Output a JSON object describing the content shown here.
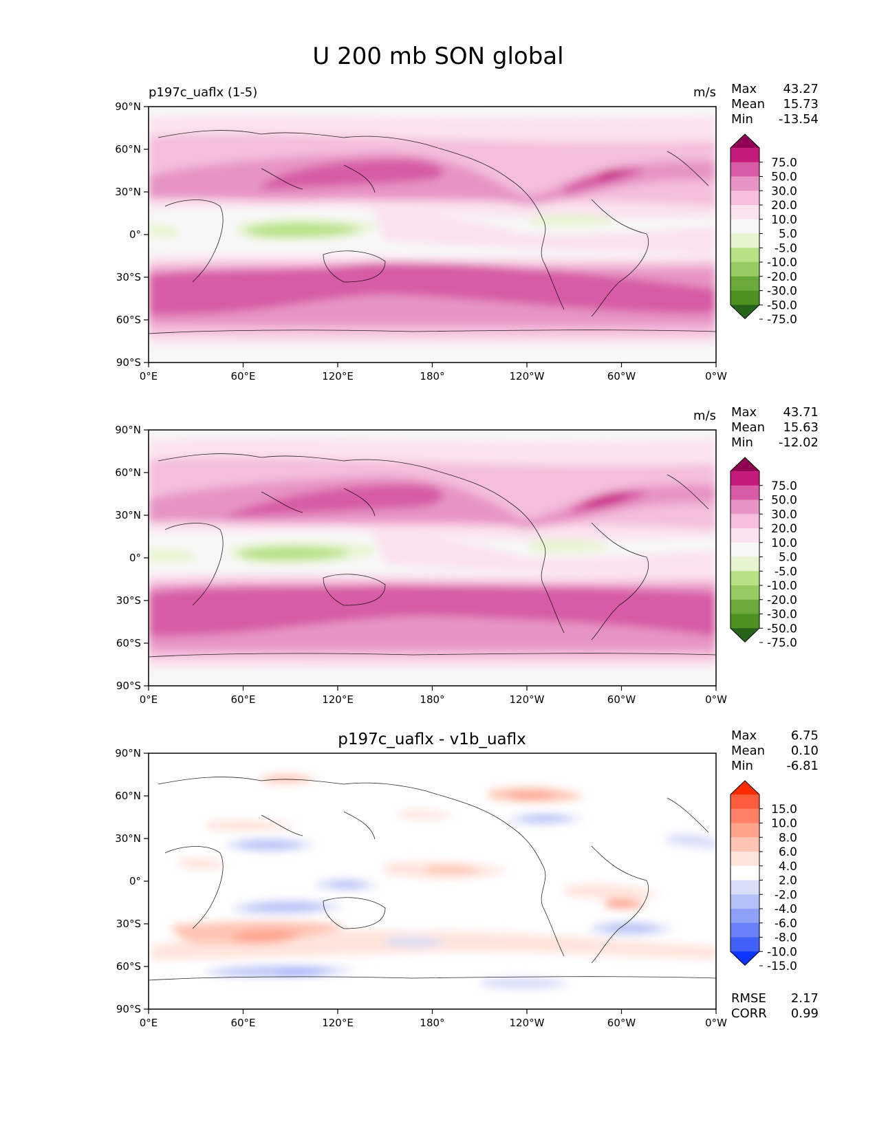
{
  "title": "U 200 mb SON global",
  "panels": [
    {
      "left_title": "p197c_uaflx (1-5)",
      "center_title": "",
      "units": "m/s",
      "stats": [
        {
          "label": "Max",
          "value": "43.27"
        },
        {
          "label": "Mean",
          "value": "15.73"
        },
        {
          "label": "Min",
          "value": "-13.54"
        }
      ],
      "colorbar": {
        "labels": [
          "75.0",
          "50.0",
          "30.0",
          "20.0",
          "10.0",
          "5.0",
          "-5.0",
          "-10.0",
          "-20.0",
          "-30.0",
          "-50.0",
          "-75.0"
        ],
        "colors": [
          "#8e0152",
          "#c51b7d",
          "#d75ba5",
          "#e794c4",
          "#f4bedc",
          "#fbe2ef",
          "#f7f7f7",
          "#e6f5d0",
          "#b8e186",
          "#98cc62",
          "#6aaa3a",
          "#4d9221",
          "#276419"
        ]
      },
      "footer": []
    },
    {
      "left_title": "",
      "center_title": "",
      "units": "m/s",
      "stats": [
        {
          "label": "Max",
          "value": "43.71"
        },
        {
          "label": "Mean",
          "value": "15.63"
        },
        {
          "label": "Min",
          "value": "-12.02"
        }
      ],
      "colorbar": {
        "labels": [
          "75.0",
          "50.0",
          "30.0",
          "20.0",
          "10.0",
          "5.0",
          "-5.0",
          "-10.0",
          "-20.0",
          "-30.0",
          "-50.0",
          "-75.0"
        ],
        "colors": [
          "#8e0152",
          "#c51b7d",
          "#d75ba5",
          "#e794c4",
          "#f4bedc",
          "#fbe2ef",
          "#f7f7f7",
          "#e6f5d0",
          "#b8e186",
          "#98cc62",
          "#6aaa3a",
          "#4d9221",
          "#276419"
        ]
      },
      "footer": []
    },
    {
      "left_title": "",
      "center_title": "p197c_uaflx - v1b_uaflx",
      "units": "",
      "stats": [
        {
          "label": "Max",
          "value": "6.75"
        },
        {
          "label": "Mean",
          "value": "0.10"
        },
        {
          "label": "Min",
          "value": "-6.81"
        }
      ],
      "colorbar": {
        "labels": [
          "15.0",
          "10.0",
          "8.0",
          "6.0",
          "4.0",
          "2.0",
          "-2.0",
          "-4.0",
          "-6.0",
          "-8.0",
          "-10.0",
          "-15.0"
        ],
        "colors": [
          "#ff2a00",
          "#ff5c3c",
          "#ff8064",
          "#ffa38c",
          "#ffc4b4",
          "#ffe4dc",
          "#ffffff",
          "#d8def8",
          "#b4c0f8",
          "#8ea0f8",
          "#6a80f8",
          "#4060f8",
          "#0a35ff"
        ]
      },
      "footer": [
        {
          "label": "RMSE",
          "value": "2.17"
        },
        {
          "label": "CORR",
          "value": "0.99"
        }
      ]
    }
  ],
  "x_ticks": [
    "0°E",
    "60°E",
    "120°E",
    "180°",
    "120°W",
    "60°W",
    "0°W"
  ],
  "y_ticks": [
    "90°N",
    "60°N",
    "30°N",
    "0°",
    "30°S",
    "60°S",
    "90°S"
  ]
}
